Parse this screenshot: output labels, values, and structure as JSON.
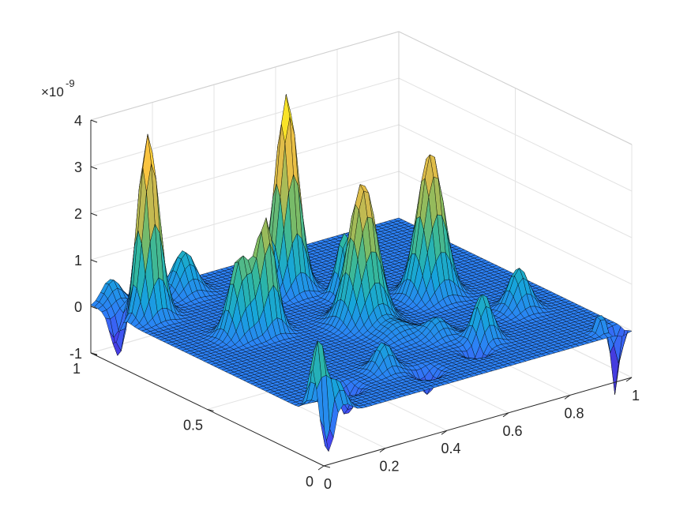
{
  "chart_data": {
    "type": "surface",
    "title": "",
    "xlabel": "",
    "ylabel": "",
    "zlabel": "",
    "xlim": [
      0,
      1
    ],
    "ylim": [
      0,
      1
    ],
    "zlim": [
      -1,
      4
    ],
    "z_exponent_label": "×10",
    "z_exponent_power": "-9",
    "x_ticks": [
      {
        "v": 0,
        "label": "0"
      },
      {
        "v": 0.2,
        "label": "0.2"
      },
      {
        "v": 0.4,
        "label": "0.4"
      },
      {
        "v": 0.6,
        "label": "0.6"
      },
      {
        "v": 0.8,
        "label": "0.8"
      },
      {
        "v": 1,
        "label": "1"
      }
    ],
    "y_ticks": [
      {
        "v": 0,
        "label": "0"
      },
      {
        "v": 0.5,
        "label": "0.5"
      },
      {
        "v": 1,
        "label": "1"
      }
    ],
    "z_ticks": [
      {
        "v": -1,
        "label": "-1"
      },
      {
        "v": 0,
        "label": "0"
      },
      {
        "v": 1,
        "label": "1"
      },
      {
        "v": 2,
        "label": "2"
      },
      {
        "v": 3,
        "label": "3"
      },
      {
        "v": 4,
        "label": "4"
      }
    ],
    "grid": true,
    "colormap": "parula",
    "colormap_stops": [
      "#3e26a8",
      "#4743f1",
      "#2d80f7",
      "#16a5da",
      "#2eb7a3",
      "#82bb61",
      "#d3ba4d",
      "#fac440",
      "#f9fb15"
    ],
    "edge_color": "#000000",
    "peaks": [
      {
        "x": 0.08,
        "y": 0.86,
        "z": 3.9,
        "w": 0.028
      },
      {
        "x": 0.25,
        "y": 0.93,
        "z": 0.9,
        "w": 0.03
      },
      {
        "x": 0.18,
        "y": 0.6,
        "z": 1.7,
        "w": 0.028
      },
      {
        "x": 0.25,
        "y": 0.58,
        "z": 2.4,
        "w": 0.026
      },
      {
        "x": 0.47,
        "y": 0.78,
        "z": 4.2,
        "w": 0.03
      },
      {
        "x": 0.49,
        "y": 0.48,
        "z": 3.0,
        "w": 0.038
      },
      {
        "x": 0.02,
        "y": 0.05,
        "z": 1.6,
        "w": 0.02
      },
      {
        "x": 0.07,
        "y": 0.03,
        "z": 0.6,
        "w": 0.02
      },
      {
        "x": 0.56,
        "y": 0.65,
        "z": 1.4,
        "w": 0.022
      },
      {
        "x": 0.74,
        "y": 0.52,
        "z": 3.1,
        "w": 0.035
      },
      {
        "x": 0.33,
        "y": 0.18,
        "z": 0.6,
        "w": 0.025
      },
      {
        "x": 0.58,
        "y": 0.28,
        "z": 0.4,
        "w": 0.03
      },
      {
        "x": 0.66,
        "y": 0.19,
        "z": 1.0,
        "w": 0.025
      },
      {
        "x": 0.86,
        "y": 0.3,
        "z": 0.9,
        "w": 0.028
      },
      {
        "x": 0.5,
        "y": 0.35,
        "z": 0.3,
        "w": 0.04
      },
      {
        "x": 0.06,
        "y": 0.99,
        "z": 0.5,
        "w": 0.025
      }
    ],
    "dips": [
      {
        "x": 0.02,
        "y": 0.9,
        "z": -1.0,
        "w": 0.02
      },
      {
        "x": 0.02,
        "y": 0.01,
        "z": -1.2,
        "w": 0.012
      },
      {
        "x": 0.18,
        "y": 0.14,
        "z": -0.6,
        "w": 0.02
      },
      {
        "x": 0.41,
        "y": 0.1,
        "z": -0.5,
        "w": 0.02
      },
      {
        "x": 0.6,
        "y": 0.14,
        "z": -0.4,
        "w": 0.02
      },
      {
        "x": 0.97,
        "y": 0.03,
        "z": -1.4,
        "w": 0.012
      },
      {
        "x": 0.93,
        "y": 0.04,
        "z": 0.5,
        "w": 0.012
      }
    ]
  }
}
